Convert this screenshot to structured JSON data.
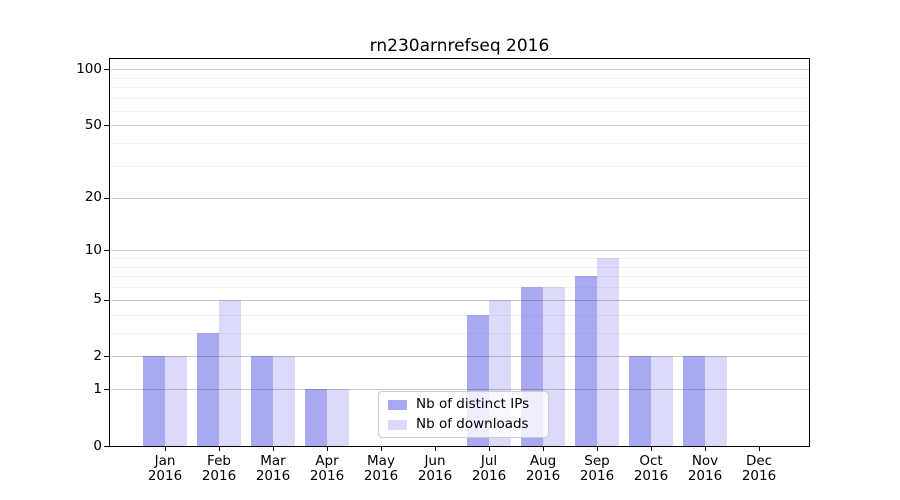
{
  "chart_data": {
    "type": "bar",
    "title": "rn230arnrefseq 2016",
    "x": [
      "Jan",
      "Feb",
      "Mar",
      "Apr",
      "May",
      "Jun",
      "Jul",
      "Aug",
      "Sep",
      "Oct",
      "Nov",
      "Dec"
    ],
    "year_label": "2016",
    "series": [
      {
        "name": "Nb of distinct IPs",
        "color": "#a9a9f2",
        "values": [
          2,
          3,
          2,
          1,
          0,
          0,
          4,
          6,
          7,
          2,
          2,
          0
        ]
      },
      {
        "name": "Nb of downloads",
        "color": "#dbdbf9",
        "values": [
          2,
          5,
          2,
          1,
          0,
          0,
          5,
          6,
          9,
          2,
          2,
          0
        ]
      }
    ],
    "y_axis": {
      "scale": "log1p",
      "major_ticks": [
        0,
        1,
        2,
        5,
        10,
        20,
        50,
        100
      ],
      "minor_ticks": [
        3,
        4,
        6,
        7,
        8,
        9,
        30,
        40,
        60,
        70,
        80,
        90
      ],
      "range": [
        0,
        116
      ]
    },
    "grid": true,
    "legend": {
      "position": "lower center"
    }
  }
}
